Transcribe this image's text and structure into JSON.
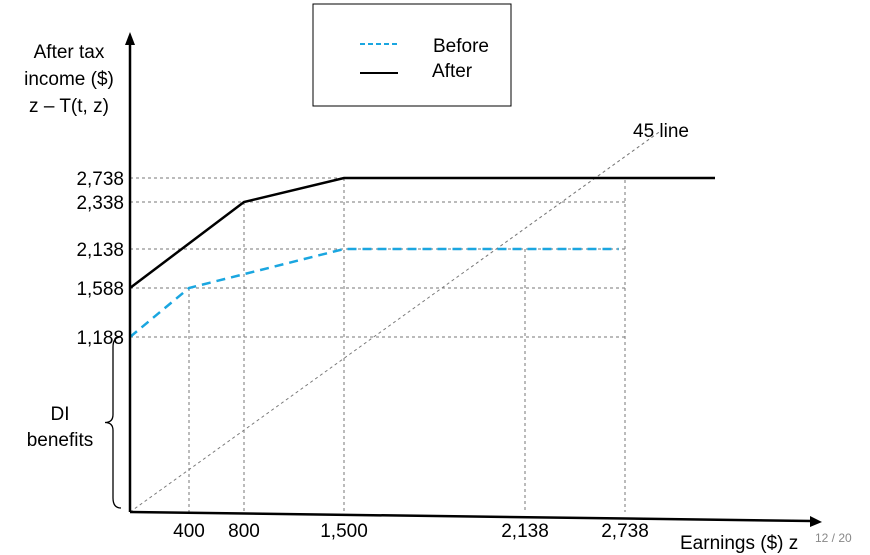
{
  "chart_data": {
    "type": "line",
    "title": "",
    "ylabel": [
      "After tax",
      "income ($)",
      "z – T(t, z)"
    ],
    "xlabel": "Earnings ($) z",
    "x_ticks": [
      400,
      800,
      1500,
      2138,
      2738
    ],
    "x_tick_labels": [
      "400",
      "800",
      "1,500",
      "2,138",
      "2,738"
    ],
    "y_ticks": [
      1188,
      1588,
      2138,
      2338,
      2738
    ],
    "y_tick_labels": [
      "1,188",
      "1,588",
      "2,138",
      "2,338",
      "2,738"
    ],
    "series": [
      {
        "name": "Before",
        "color": "#1aa6e0",
        "style": "dashed",
        "x": [
          0,
          400,
          1500,
          2700
        ],
        "y": [
          1188,
          1588,
          2138,
          2138
        ]
      },
      {
        "name": "After",
        "color": "#000000",
        "style": "solid",
        "x": [
          0,
          800,
          1500,
          3300
        ],
        "y": [
          1588,
          2338,
          2738,
          2738
        ]
      }
    ],
    "reference_line": {
      "label": "45 line",
      "slope": 1
    },
    "annotation": {
      "text": "DI benefits",
      "from": 0,
      "to": 1188
    },
    "legend_position": "top"
  },
  "page": {
    "number": "12 / 20"
  }
}
